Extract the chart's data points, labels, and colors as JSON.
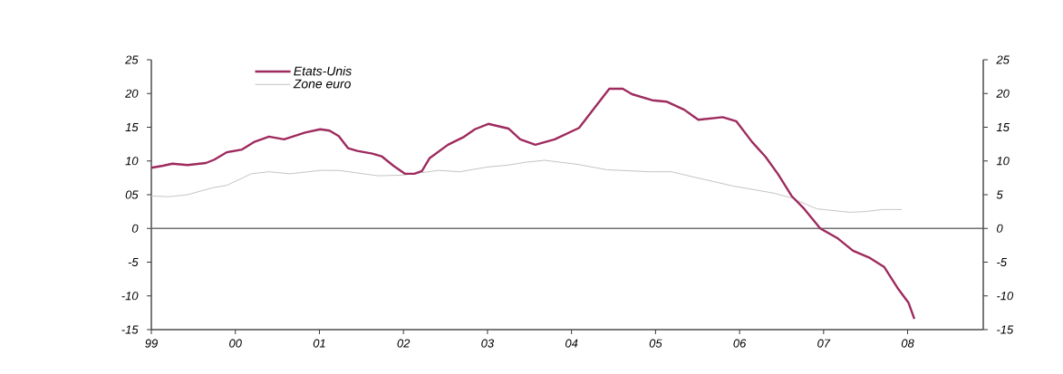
{
  "chart_data": {
    "type": "line",
    "series": [
      {
        "name": "Etats-Unis",
        "color": "#9e2a5e",
        "x": [
          1999.0,
          1999.14,
          1999.25,
          1999.43,
          1999.65,
          1999.75,
          1999.9,
          2000.08,
          2000.22,
          2000.4,
          2000.58,
          2000.83,
          2001.01,
          2001.12,
          2001.23,
          2001.34,
          2001.45,
          2001.63,
          2001.74,
          2001.88,
          2002.02,
          2002.13,
          2002.22,
          2002.31,
          2002.53,
          2002.71,
          2002.85,
          2003.01,
          2003.25,
          2003.39,
          2003.57,
          2003.8,
          2004.09,
          2004.3,
          2004.45,
          2004.61,
          2004.72,
          2004.96,
          2005.13,
          2005.34,
          2005.51,
          2005.8,
          2005.96,
          2006.15,
          2006.31,
          2006.46,
          2006.62,
          2006.77,
          2006.96,
          2007.16,
          2007.35,
          2007.54,
          2007.72,
          2007.89,
          2008.01,
          2008.08
        ],
        "values": [
          9.0,
          9.3,
          9.6,
          9.4,
          9.7,
          10.2,
          11.3,
          11.7,
          12.8,
          13.6,
          13.2,
          14.2,
          14.7,
          14.5,
          13.7,
          11.9,
          11.5,
          11.1,
          10.7,
          9.3,
          8.1,
          8.1,
          8.5,
          10.4,
          12.4,
          13.5,
          14.7,
          15.5,
          14.8,
          13.2,
          12.4,
          13.2,
          14.9,
          18.3,
          20.7,
          20.7,
          19.9,
          19.0,
          18.8,
          17.6,
          16.1,
          16.5,
          15.9,
          12.8,
          10.6,
          8.0,
          4.8,
          2.9,
          0.0,
          -1.4,
          -3.3,
          -4.3,
          -5.7,
          -9.0,
          -11.0,
          -13.4
        ]
      },
      {
        "name": "Zone euro",
        "color": "#c4c4c4",
        "x": [
          1999.0,
          1999.21,
          1999.43,
          1999.72,
          1999.9,
          2000.19,
          2000.4,
          2000.65,
          2001.01,
          2001.23,
          2001.7,
          2001.99,
          2002.42,
          2002.67,
          2003.0,
          2003.25,
          2003.45,
          2003.68,
          2004.07,
          2004.42,
          2004.92,
          2005.19,
          2005.46,
          2005.92,
          2006.42,
          2006.62,
          2006.92,
          2007.31,
          2007.5,
          2007.7,
          2007.93
        ],
        "values": [
          4.8,
          4.7,
          5.0,
          6.0,
          6.4,
          8.1,
          8.4,
          8.1,
          8.6,
          8.6,
          7.8,
          7.9,
          8.6,
          8.4,
          9.1,
          9.4,
          9.8,
          10.1,
          9.5,
          8.7,
          8.4,
          8.4,
          7.6,
          6.3,
          5.2,
          4.5,
          2.9,
          2.4,
          2.5,
          2.8,
          2.8
        ]
      }
    ],
    "xlim": [
      1999,
      2008.9
    ],
    "xticks": [
      {
        "value": 1999,
        "label": "99"
      },
      {
        "value": 2000,
        "label": "00"
      },
      {
        "value": 2001,
        "label": "01"
      },
      {
        "value": 2002,
        "label": "02"
      },
      {
        "value": 2003,
        "label": "03"
      },
      {
        "value": 2004,
        "label": "04"
      },
      {
        "value": 2005,
        "label": "05"
      },
      {
        "value": 2006,
        "label": "06"
      },
      {
        "value": 2007,
        "label": "07"
      },
      {
        "value": 2008,
        "label": "08"
      }
    ],
    "ylim": [
      -15,
      25
    ],
    "yticks": [
      -15,
      -10,
      -5,
      0,
      {
        "value": 5,
        "label": "05"
      },
      10,
      15,
      20,
      25
    ],
    "y2lim": [
      -15,
      25
    ],
    "y2ticks": [
      -15,
      -10,
      -5,
      0,
      5,
      10,
      15,
      20,
      25
    ],
    "ref_lines": [
      {
        "axis": "y",
        "value": 0,
        "color": "#707070"
      }
    ],
    "legend": "top left",
    "grid": false,
    "marker": "none",
    "line_style": "solid"
  }
}
